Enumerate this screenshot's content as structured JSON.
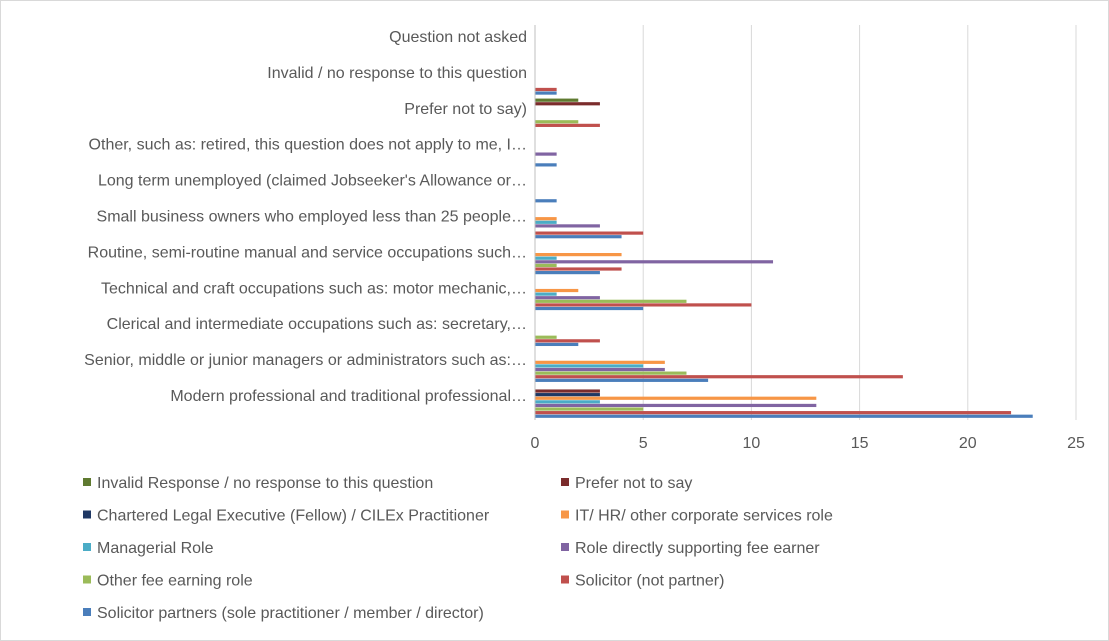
{
  "chart_data": {
    "type": "bar",
    "orientation": "horizontal",
    "title": "",
    "xlabel": "",
    "ylabel": "",
    "xlim": [
      0,
      25
    ],
    "xticks": [
      0,
      5,
      10,
      15,
      20,
      25
    ],
    "grid": true,
    "legend_position": "bottom",
    "categories": [
      "Modern professional and traditional professional…",
      "Senior, middle or junior managers or administrators such as:…",
      "Clerical and intermediate occupations such as: secretary,…",
      "Technical and craft occupations such as: motor mechanic,…",
      "Routine, semi-routine manual and service occupations such…",
      "Small business owners who employed less than 25 people…",
      "Long term unemployed (claimed Jobseeker's Allowance or…",
      "Other, such as: retired, this question does not apply to me, I…",
      "Prefer not to say)",
      "Invalid / no response to this question",
      "Question not asked"
    ],
    "series": [
      {
        "name": "Solicitor partners (sole practitioner / member / director)",
        "color": "#4a7ebb",
        "values": [
          23,
          8,
          2,
          5,
          3,
          4,
          1,
          1,
          0,
          1,
          0
        ]
      },
      {
        "name": "Solicitor (not partner)",
        "color": "#c0504d",
        "values": [
          22,
          17,
          3,
          10,
          4,
          5,
          0,
          0,
          3,
          1,
          0
        ]
      },
      {
        "name": "Other fee earning role",
        "color": "#9bbb59",
        "values": [
          5,
          7,
          1,
          7,
          1,
          0,
          0,
          0,
          2,
          0,
          0
        ]
      },
      {
        "name": "Role directly supporting fee earner",
        "color": "#8064a2",
        "values": [
          13,
          6,
          0,
          3,
          11,
          3,
          0,
          1,
          0,
          0,
          0
        ]
      },
      {
        "name": "Managerial Role",
        "color": "#4bacc6",
        "values": [
          3,
          5,
          0,
          1,
          1,
          1,
          0,
          0,
          0,
          0,
          0
        ]
      },
      {
        "name": "IT/ HR/ other corporate services role",
        "color": "#f79646",
        "values": [
          13,
          6,
          0,
          2,
          4,
          1,
          0,
          0,
          0,
          0,
          0
        ]
      },
      {
        "name": "Chartered Legal Executive (Fellow) / CILEx Practitioner",
        "color": "#1f3864",
        "values": [
          3,
          0,
          0,
          0,
          0,
          0,
          0,
          0,
          0,
          0,
          0
        ]
      },
      {
        "name": "Prefer not to say",
        "color": "#7b2c2c",
        "values": [
          3,
          0,
          0,
          0,
          0,
          0,
          0,
          0,
          3,
          0,
          0
        ]
      },
      {
        "name": "Invalid Response / no response to this question",
        "color": "#5f7a30",
        "values": [
          0,
          0,
          0,
          0,
          0,
          0,
          0,
          0,
          2,
          0,
          0
        ]
      }
    ],
    "legend_order": [
      8,
      7,
      6,
      5,
      4,
      3,
      2,
      1,
      0
    ]
  }
}
